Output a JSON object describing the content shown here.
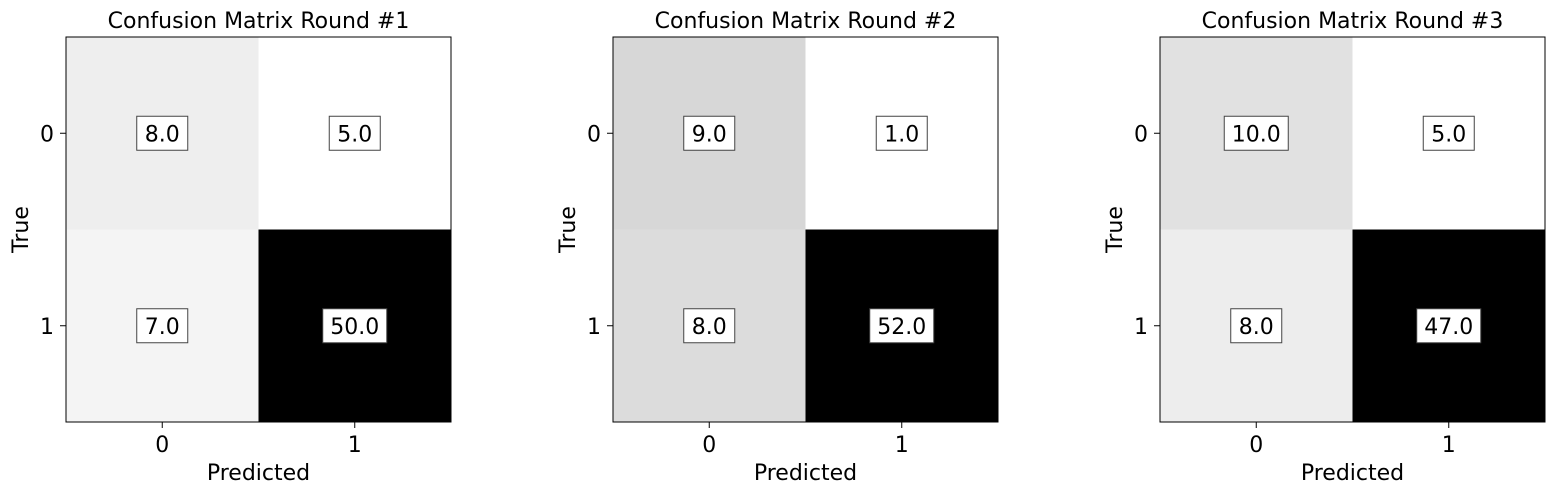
{
  "chart_data": [
    {
      "type": "heatmap",
      "title": "Confusion Matrix Round #1",
      "xlabel": "Predicted",
      "ylabel": "True",
      "x_categories": [
        "0",
        "1"
      ],
      "y_categories": [
        "0",
        "1"
      ],
      "values": [
        [
          8.0,
          5.0
        ],
        [
          7.0,
          50.0
        ]
      ],
      "value_labels": [
        [
          "8.0",
          "5.0"
        ],
        [
          "7.0",
          "50.0"
        ]
      ],
      "colormap": "Greys",
      "grid": false
    },
    {
      "type": "heatmap",
      "title": "Confusion Matrix Round #2",
      "xlabel": "Predicted",
      "ylabel": "True",
      "x_categories": [
        "0",
        "1"
      ],
      "y_categories": [
        "0",
        "1"
      ],
      "values": [
        [
          9.0,
          1.0
        ],
        [
          8.0,
          52.0
        ]
      ],
      "value_labels": [
        [
          "9.0",
          "1.0"
        ],
        [
          "8.0",
          "52.0"
        ]
      ],
      "colormap": "Greys",
      "grid": false
    },
    {
      "type": "heatmap",
      "title": "Confusion Matrix Round #3",
      "xlabel": "Predicted",
      "ylabel": "True",
      "x_categories": [
        "0",
        "1"
      ],
      "y_categories": [
        "0",
        "1"
      ],
      "values": [
        [
          10.0,
          5.0
        ],
        [
          8.0,
          47.0
        ]
      ],
      "value_labels": [
        [
          "10.0",
          "5.0"
        ],
        [
          "8.0",
          "47.0"
        ]
      ],
      "colormap": "Greys",
      "grid": false
    }
  ]
}
